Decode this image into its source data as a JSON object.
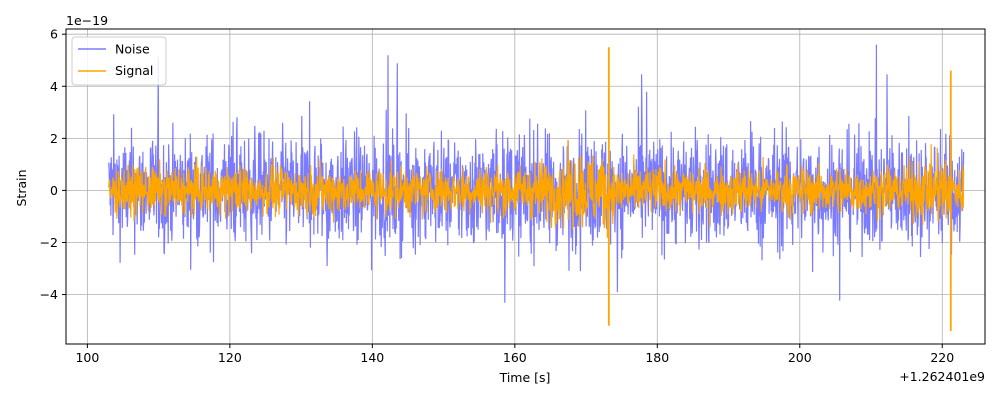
{
  "chart_data": {
    "type": "line",
    "xlabel": "Time [s]",
    "ylabel": "Strain",
    "x_offset_label": "+1.262401e9",
    "y_scale_label": "1e−19",
    "xlim": [
      97,
      226
    ],
    "ylim": [
      -5.9,
      6.2
    ],
    "x_ticks": [
      100,
      120,
      140,
      160,
      180,
      200,
      220
    ],
    "y_ticks": [
      -4,
      -2,
      0,
      2,
      4,
      6
    ],
    "x_tick_labels": [
      "100",
      "120",
      "140",
      "160",
      "180",
      "200",
      "220"
    ],
    "y_tick_labels": [
      "−4",
      "−2",
      "0",
      "2",
      "4",
      "6"
    ],
    "grid": true,
    "legend_position": "top-left",
    "x_range": [
      103,
      223
    ],
    "series": [
      {
        "name": "Noise",
        "color": "#7b7bff",
        "typical_amplitude": 1.5,
        "peak_max": 5.6,
        "peak_min": -4.9
      },
      {
        "name": "Signal",
        "color": "#ffa500",
        "typical_amplitude": 0.6,
        "spikes": [
          {
            "x": 173.2,
            "max": 5.5,
            "min": -5.2
          },
          {
            "x": 221.2,
            "max": 4.6,
            "min": -5.4
          }
        ]
      }
    ]
  }
}
